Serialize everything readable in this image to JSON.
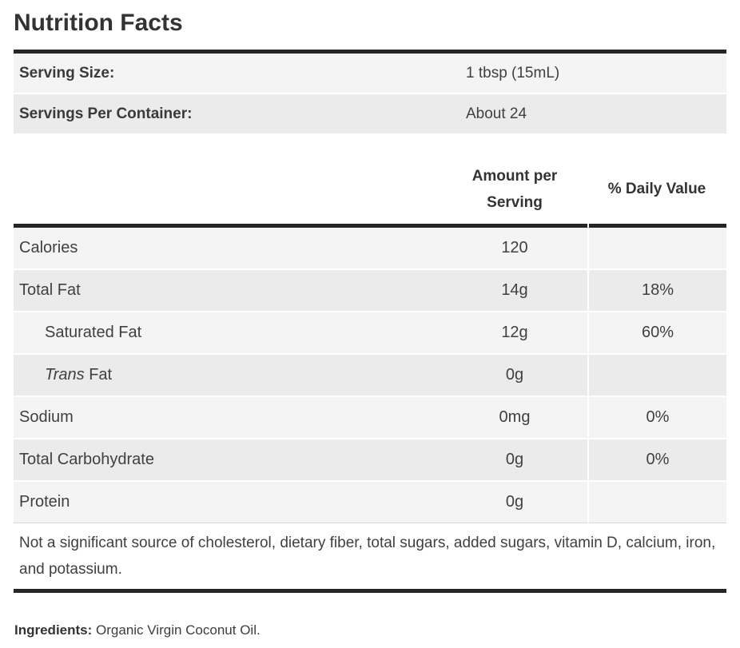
{
  "title": "Nutrition Facts",
  "serving_info": [
    {
      "label": "Serving Size:",
      "value": "1 tbsp (15mL)"
    },
    {
      "label": "Servings Per Container:",
      "value": "About 24"
    }
  ],
  "column_headers": {
    "amount_line1": "Amount per",
    "amount_line2": "Serving",
    "daily_value": "% Daily Value"
  },
  "nutrients": [
    {
      "label": "Calories",
      "amount": "120",
      "daily_value": ""
    },
    {
      "label": "Total Fat",
      "amount": "14g",
      "daily_value": "18%"
    },
    {
      "label": "Saturated Fat",
      "amount": "12g",
      "daily_value": "60%"
    },
    {
      "label_italic": "Trans",
      "label": " Fat",
      "amount": "0g",
      "daily_value": ""
    },
    {
      "label": "Sodium",
      "amount": "0mg",
      "daily_value": "0%"
    },
    {
      "label": "Total Carbohydrate",
      "amount": "0g",
      "daily_value": "0%"
    },
    {
      "label": "Protein",
      "amount": "0g",
      "daily_value": ""
    }
  ],
  "footnote": "Not a significant source of cholesterol, dietary fiber, total sugars, added sugars, vitamin D, calcium, iron, and potassium.",
  "ingredients": {
    "label": "Ingredients:",
    "text": "Organic Virgin Coconut Oil."
  },
  "colors": {
    "rule_dark": "#262626",
    "stripe_light": "#f4f4f4",
    "stripe_dark": "#ebebeb",
    "divider_light": "#d9d9d9",
    "text": "#404040"
  }
}
